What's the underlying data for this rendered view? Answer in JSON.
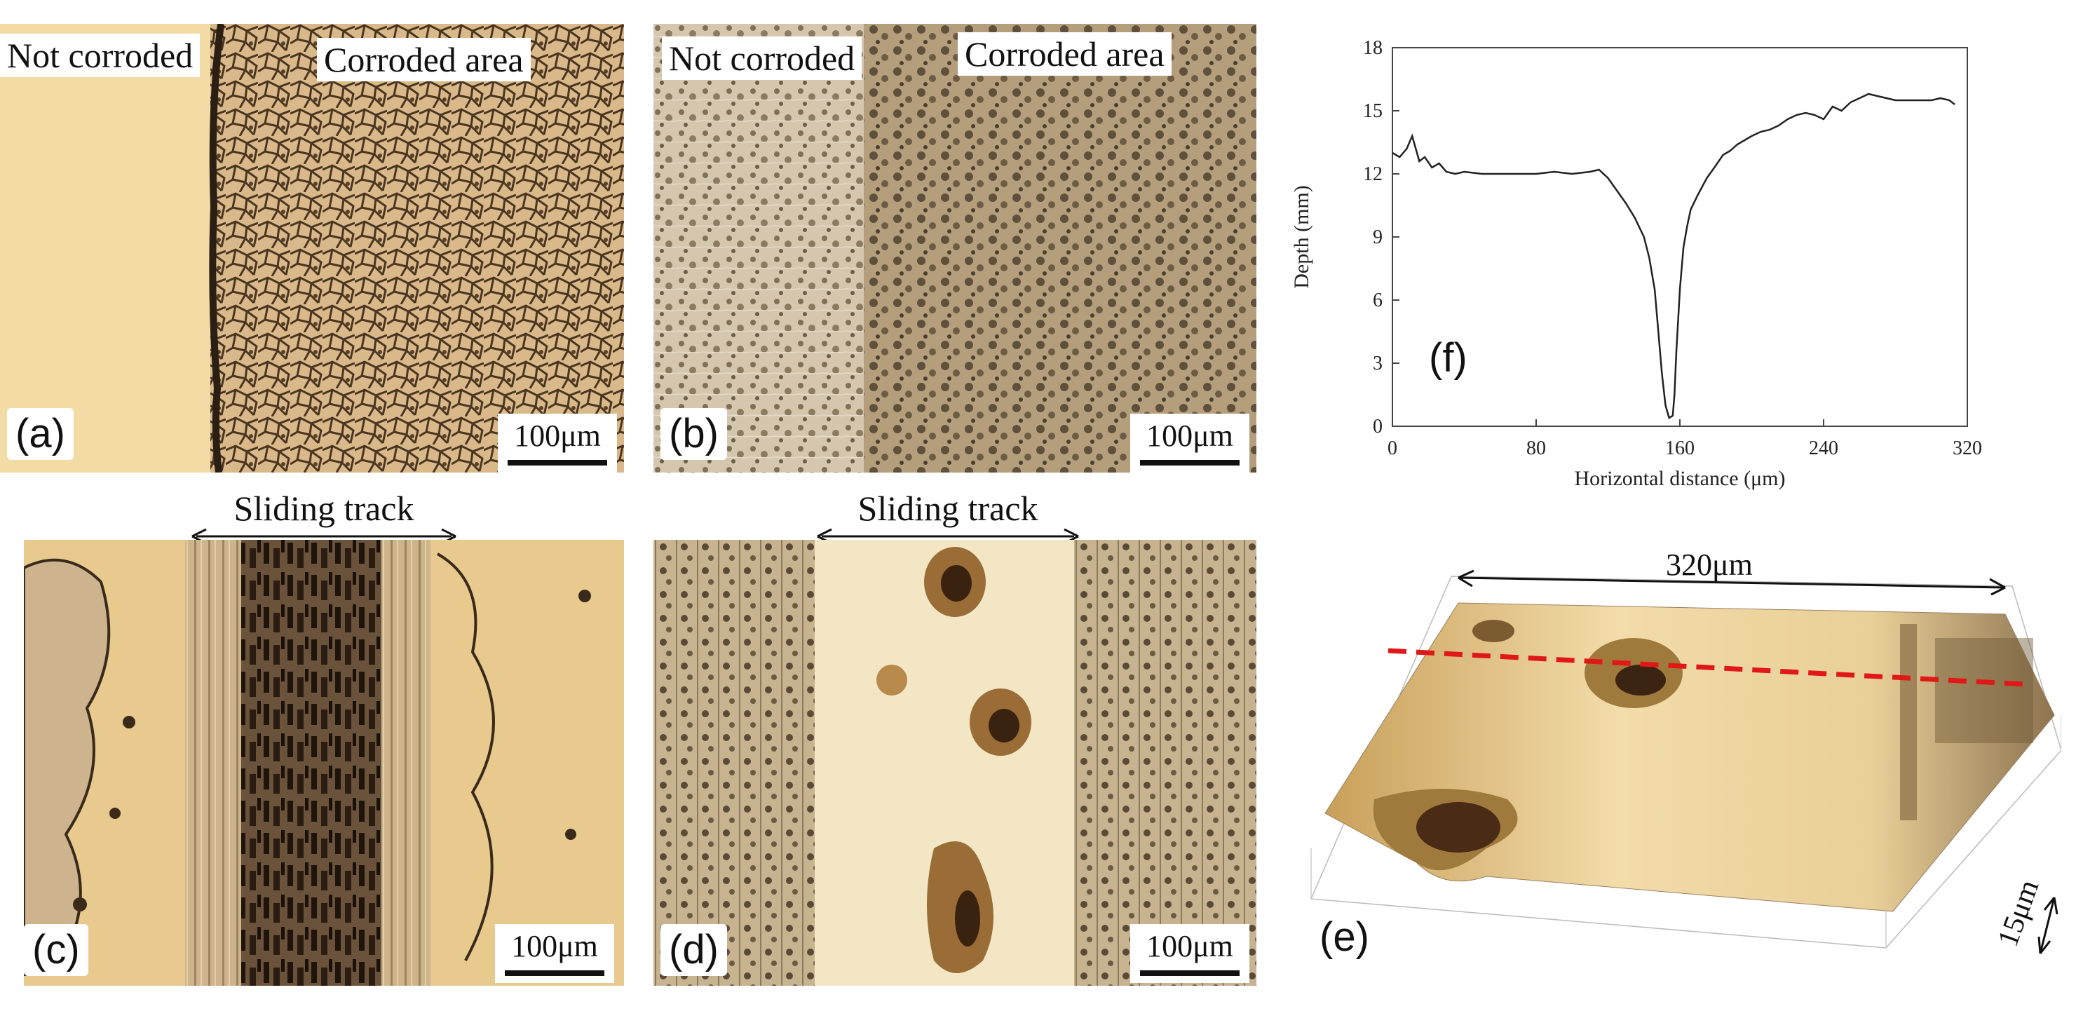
{
  "panels": {
    "a": {
      "tag": "(a)",
      "left_label": "Not corroded",
      "right_label": "Corroded area",
      "scale": "100μm"
    },
    "b": {
      "tag": "(b)",
      "left_label": "Not corroded",
      "right_label": "Corroded area",
      "scale": "100μm"
    },
    "c": {
      "tag": "(c)",
      "track_label": "Sliding track",
      "scale": "100μm"
    },
    "d": {
      "tag": "(d)",
      "track_label": "Sliding track",
      "scale": "100μm"
    },
    "e": {
      "tag": "(e)",
      "width_label": "320μm",
      "depth_label": "15μm"
    },
    "f": {
      "tag": "(f)"
    }
  },
  "chart_data": {
    "type": "line",
    "xlabel": "Horizontal distance (μm)",
    "ylabel": "Depth (mm)",
    "xlim": [
      0,
      320
    ],
    "ylim": [
      0,
      18
    ],
    "xticks": [
      0,
      80,
      160,
      240,
      320
    ],
    "yticks": [
      0,
      3,
      6,
      9,
      12,
      15,
      18
    ],
    "x": [
      0,
      4,
      8,
      11,
      13,
      15,
      18,
      22,
      26,
      30,
      35,
      40,
      50,
      60,
      70,
      80,
      90,
      100,
      110,
      115,
      120,
      125,
      130,
      135,
      140,
      143,
      146,
      148,
      150,
      152,
      154,
      156,
      157,
      158,
      160,
      162,
      164,
      166,
      170,
      175,
      180,
      184,
      188,
      192,
      196,
      200,
      205,
      210,
      215,
      220,
      225,
      230,
      235,
      240,
      245,
      250,
      255,
      260,
      265,
      270,
      275,
      280,
      290,
      300,
      305,
      310,
      313
    ],
    "y": [
      13.0,
      12.8,
      13.2,
      13.8,
      13.2,
      12.6,
      12.8,
      12.3,
      12.5,
      12.1,
      12.0,
      12.1,
      12.0,
      12.0,
      12.0,
      12.0,
      12.1,
      12.0,
      12.1,
      12.2,
      11.8,
      11.2,
      10.6,
      9.9,
      9.0,
      8.0,
      6.5,
      4.5,
      2.5,
      1.0,
      0.4,
      0.5,
      1.5,
      3.5,
      6.5,
      8.5,
      9.5,
      10.3,
      11.0,
      11.8,
      12.4,
      12.9,
      13.1,
      13.4,
      13.6,
      13.8,
      14.0,
      14.1,
      14.3,
      14.6,
      14.8,
      14.9,
      14.8,
      14.6,
      15.2,
      15.0,
      15.4,
      15.6,
      15.8,
      15.7,
      15.6,
      15.5,
      15.5,
      15.5,
      15.6,
      15.5,
      15.3
    ]
  }
}
